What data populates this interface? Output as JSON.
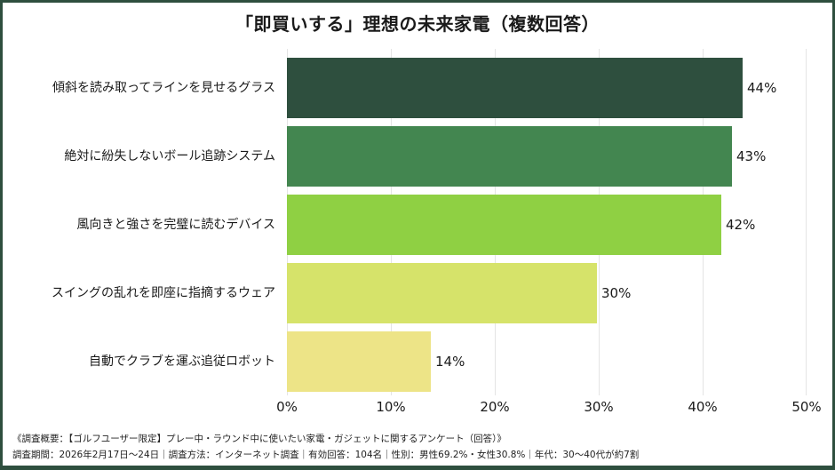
{
  "title": "「即買いする」理想の未来家電（複数回答）",
  "colors": {
    "frame": "#2e4f3e",
    "bars": [
      "#2e4f3e",
      "#438650",
      "#8fd043",
      "#d6e36a",
      "#ede487"
    ]
  },
  "chart_data": {
    "type": "bar",
    "orientation": "horizontal",
    "title": "「即買いする」理想の未来家電（複数回答）",
    "categories": [
      "傾斜を読み取ってラインを見せるグラス",
      "絶対に紛失しないボール追跡システム",
      "風向きと強さを完璧に読むデバイス",
      "スイングの乱れを即座に指摘するウェア",
      "自動でクラブを運ぶ追従ロボット"
    ],
    "values": [
      44,
      43,
      42,
      30,
      14
    ],
    "value_labels": [
      "44%",
      "43%",
      "42%",
      "30%",
      "14%"
    ],
    "xlabel": "",
    "ylabel": "",
    "xlim": [
      0,
      50
    ],
    "x_ticks": [
      "0%",
      "10%",
      "20%",
      "30%",
      "40%",
      "50%"
    ],
    "grid": true,
    "legend": null
  },
  "footer": {
    "line1": "《調査概要：【ゴルフユーザー限定】プレー中・ラウンド中に使いたい家電・ガジェットに関するアンケート（回答）》",
    "line2": "調査期間：2026年2月17日〜24日｜調査方法：インターネット調査｜有効回答：104名｜性別：男性69.2%・女性30.8%｜年代：30〜40代が約7割"
  }
}
